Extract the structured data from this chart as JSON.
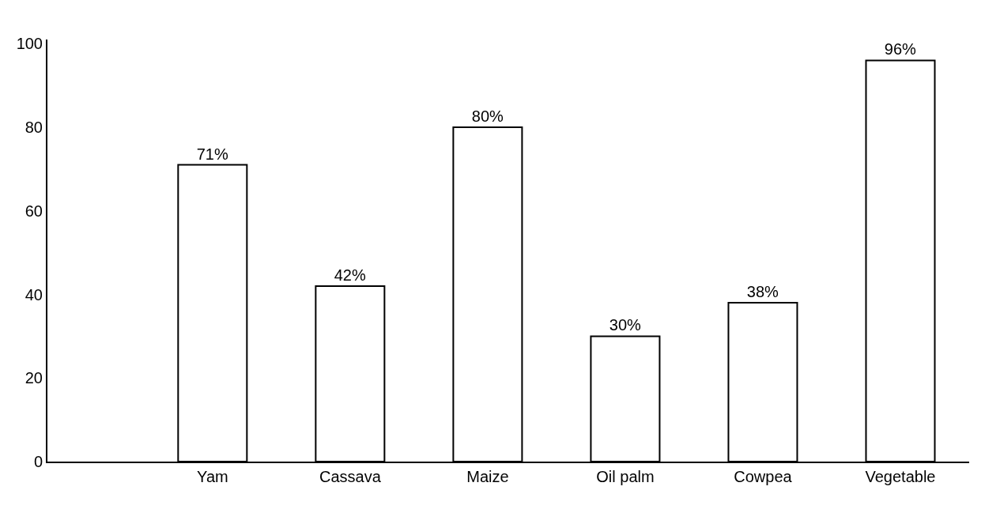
{
  "chart_data": {
    "type": "bar",
    "categories": [
      "Yam",
      "Cassava",
      "Maize",
      "Oil palm",
      "Cowpea",
      "Vegetable"
    ],
    "values": [
      71,
      42,
      80,
      30,
      38,
      96
    ],
    "value_labels": [
      "71%",
      "42%",
      "80%",
      "30%",
      "38%",
      "96%"
    ],
    "color": "#ffffff",
    "ylim": [
      0,
      101
    ],
    "yticks": [
      0,
      20,
      40,
      60,
      80,
      100
    ]
  }
}
